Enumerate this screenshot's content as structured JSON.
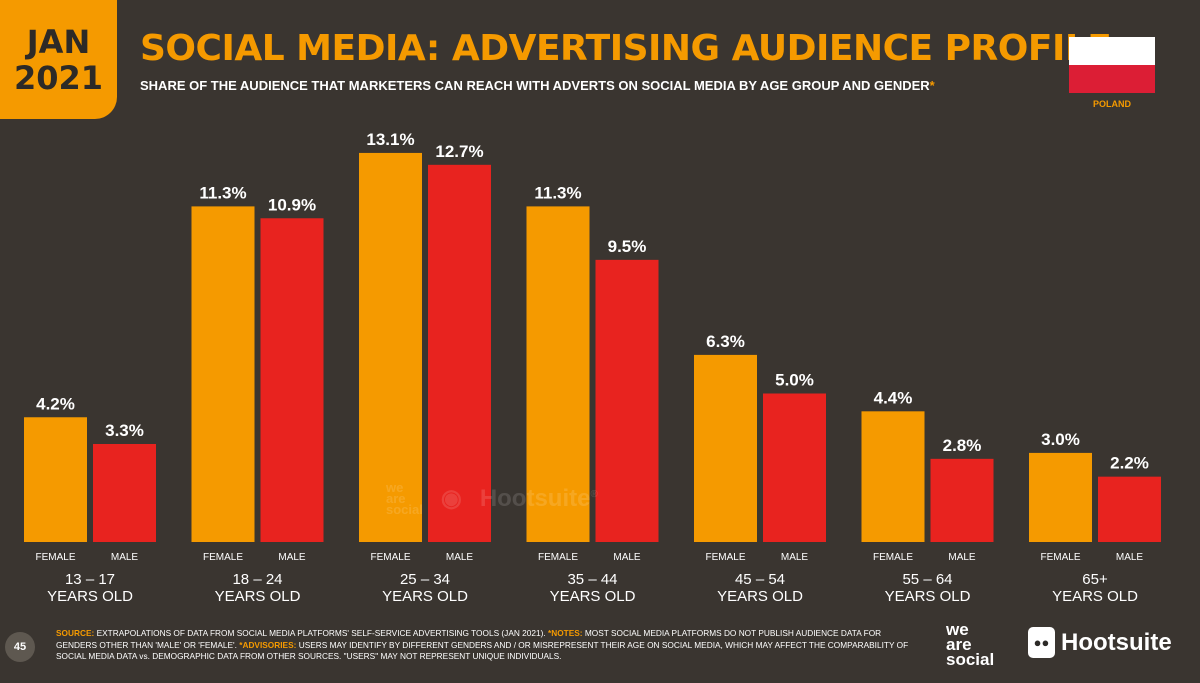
{
  "header": {
    "date_month": "JAN",
    "date_year": "2021",
    "title": "SOCIAL MEDIA: ADVERTISING AUDIENCE PROFILE",
    "subtitle": "SHARE OF THE AUDIENCE THAT MARKETERS CAN REACH WITH ADVERTS ON SOCIAL MEDIA BY AGE GROUP AND GENDER",
    "subtitle_mark": "*",
    "country": "POLAND"
  },
  "colors": {
    "background": "#3a3530",
    "female": "#f59a00",
    "male": "#e8231f",
    "accent": "#f59a00"
  },
  "chart_data": {
    "type": "bar",
    "categories": [
      [
        "13 – 17",
        "YEARS OLD"
      ],
      [
        "18 – 24",
        "YEARS OLD"
      ],
      [
        "25 – 34",
        "YEARS OLD"
      ],
      [
        "35 – 44",
        "YEARS OLD"
      ],
      [
        "45 – 54",
        "YEARS OLD"
      ],
      [
        "55 – 64",
        "YEARS OLD"
      ],
      [
        "65+",
        "YEARS OLD"
      ]
    ],
    "series": [
      {
        "name": "FEMALE",
        "values": [
          4.2,
          11.3,
          13.1,
          11.3,
          6.3,
          4.4,
          3.0
        ],
        "labels": [
          "4.2%",
          "11.3%",
          "13.1%",
          "11.3%",
          "6.3%",
          "4.4%",
          "3.0%"
        ]
      },
      {
        "name": "MALE",
        "values": [
          3.3,
          10.9,
          12.7,
          9.5,
          5.0,
          2.8,
          2.2
        ],
        "labels": [
          "3.3%",
          "10.9%",
          "12.7%",
          "9.5%",
          "5.0%",
          "2.8%",
          "2.2%"
        ]
      }
    ],
    "ylim": [
      0,
      13.1
    ],
    "grid": false,
    "legend": "none"
  },
  "watermark": {
    "was_lines": [
      "we",
      "are",
      "social"
    ],
    "hootsuite": "Hootsuite",
    "registered": "®"
  },
  "footer": {
    "page_number": "45",
    "source_label": "SOURCE:",
    "source_text": " EXTRAPOLATIONS OF DATA FROM SOCIAL MEDIA PLATFORMS' SELF-SERVICE ADVERTISING TOOLS (JAN 2021). ",
    "notes_label": "*NOTES:",
    "notes_text": " MOST SOCIAL MEDIA PLATFORMS DO NOT PUBLISH AUDIENCE DATA FOR GENDERS OTHER THAN 'MALE' OR 'FEMALE'. ",
    "advisories_label": "*ADVISORIES:",
    "advisories_text": " USERS MAY IDENTIFY BY DIFFERENT GENDERS AND / OR MISREPRESENT THEIR AGE ON SOCIAL MEDIA, WHICH MAY AFFECT THE COMPARABILITY OF SOCIAL MEDIA DATA vs. DEMOGRAPHIC DATA FROM OTHER SOURCES. \"USERS\" MAY NOT REPRESENT UNIQUE INDIVIDUALS.",
    "logo_was": [
      "we",
      "are",
      "social"
    ],
    "logo_hootsuite": "Hootsuite"
  }
}
